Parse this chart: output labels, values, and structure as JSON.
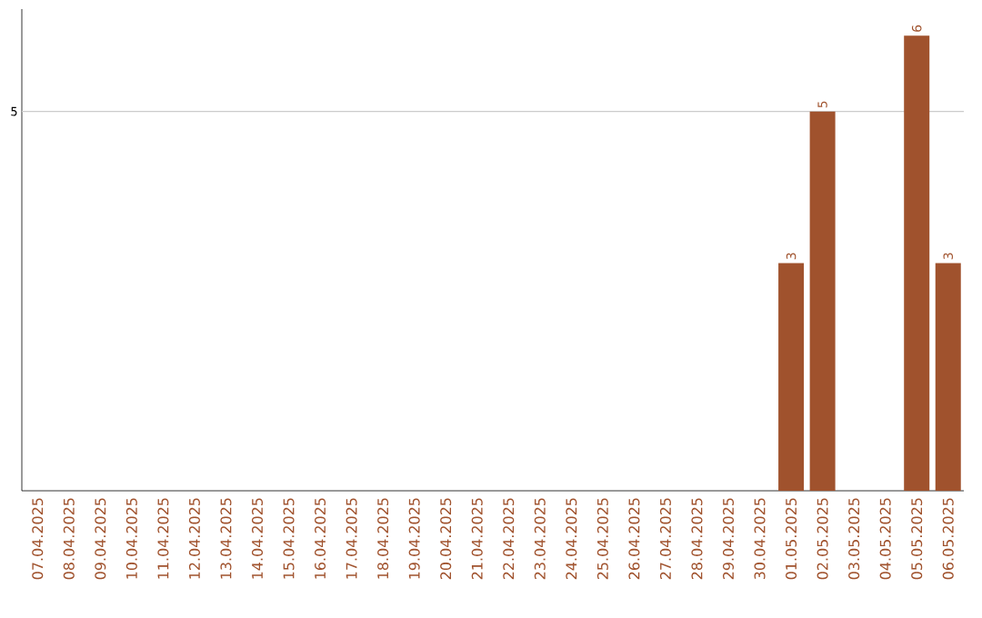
{
  "chart_data": {
    "type": "bar",
    "categories": [
      "07.04.2025",
      "08.04.2025",
      "09.04.2025",
      "10.04.2025",
      "11.04.2025",
      "12.04.2025",
      "13.04.2025",
      "14.04.2025",
      "15.04.2025",
      "16.04.2025",
      "17.04.2025",
      "18.04.2025",
      "19.04.2025",
      "20.04.2025",
      "21.04.2025",
      "22.04.2025",
      "23.04.2025",
      "24.04.2025",
      "25.04.2025",
      "26.04.2025",
      "27.04.2025",
      "28.04.2025",
      "29.04.2025",
      "30.04.2025",
      "01.05.2025",
      "02.05.2025",
      "03.05.2025",
      "04.05.2025",
      "05.05.2025",
      "06.05.2025"
    ],
    "values": [
      null,
      null,
      null,
      null,
      null,
      null,
      null,
      null,
      null,
      null,
      null,
      null,
      null,
      null,
      null,
      null,
      null,
      null,
      null,
      null,
      null,
      null,
      null,
      null,
      3,
      5,
      null,
      null,
      6,
      3
    ],
    "data_labels": true,
    "color": "#a0522d",
    "ylim": [
      0,
      6.35
    ],
    "ref_lines": [
      {
        "axis": "y",
        "value": 5,
        "label": "5",
        "color": "#cccccc"
      }
    ]
  }
}
